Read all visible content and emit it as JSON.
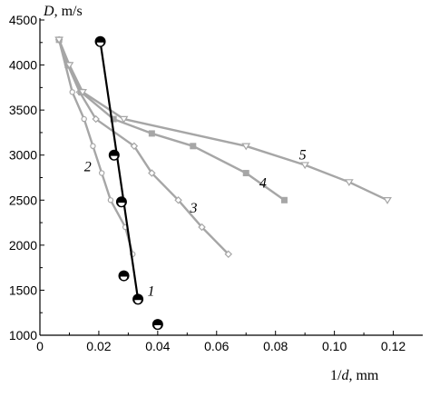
{
  "chart_data": {
    "type": "line",
    "title": "",
    "xlabel_var": "1/",
    "xlabel_var_italic": "d",
    "xlabel_unit": ", mm",
    "ylabel_var": "D",
    "ylabel_unit": ", m/s",
    "xlim": [
      0,
      0.13
    ],
    "ylim": [
      1000,
      4500
    ],
    "xticks": [
      0,
      0.02,
      0.04,
      0.06,
      0.08,
      0.1,
      0.12
    ],
    "xtick_labels": [
      "0",
      "0.02",
      "0.04",
      "0.06",
      "0.08",
      "0.10",
      "0.12"
    ],
    "yticks": [
      1000,
      1500,
      2000,
      2500,
      3000,
      3500,
      4000,
      4500
    ],
    "ytick_labels": [
      "1000",
      "1500",
      "2000",
      "2500",
      "3000",
      "3500",
      "4000",
      "4500"
    ],
    "colors": {
      "gray": "#a6a6a6",
      "black": "#000000"
    },
    "series": [
      {
        "label": "1",
        "marker": "half-filled-circle",
        "points": [
          {
            "x": 0.0205,
            "y": 4260
          },
          {
            "x": 0.0252,
            "y": 3000
          },
          {
            "x": 0.0277,
            "y": 2480
          },
          {
            "x": 0.0285,
            "y": 1660
          },
          {
            "x": 0.0333,
            "y": 1400
          },
          {
            "x": 0.04,
            "y": 1120
          }
        ],
        "fit_line": [
          {
            "x": 0.0205,
            "y": 4260
          },
          {
            "x": 0.0333,
            "y": 1400
          }
        ]
      },
      {
        "label": "2",
        "marker": "open-circle",
        "points": [
          {
            "x": 0.0065,
            "y": 4280
          },
          {
            "x": 0.011,
            "y": 3700
          },
          {
            "x": 0.015,
            "y": 3400
          },
          {
            "x": 0.018,
            "y": 3100
          },
          {
            "x": 0.021,
            "y": 2800
          },
          {
            "x": 0.024,
            "y": 2500
          },
          {
            "x": 0.029,
            "y": 2200
          },
          {
            "x": 0.0315,
            "y": 1900
          }
        ]
      },
      {
        "label": "3",
        "marker": "open-diamond",
        "points": [
          {
            "x": 0.0065,
            "y": 4280
          },
          {
            "x": 0.0095,
            "y": 4000
          },
          {
            "x": 0.0135,
            "y": 3700
          },
          {
            "x": 0.019,
            "y": 3400
          },
          {
            "x": 0.032,
            "y": 3100
          },
          {
            "x": 0.038,
            "y": 2800
          },
          {
            "x": 0.047,
            "y": 2500
          },
          {
            "x": 0.055,
            "y": 2200
          },
          {
            "x": 0.064,
            "y": 1900
          }
        ]
      },
      {
        "label": "4",
        "marker": "filled-square",
        "points": [
          {
            "x": 0.0065,
            "y": 4280
          },
          {
            "x": 0.0095,
            "y": 4000
          },
          {
            "x": 0.014,
            "y": 3700
          },
          {
            "x": 0.025,
            "y": 3400
          },
          {
            "x": 0.038,
            "y": 3240
          },
          {
            "x": 0.052,
            "y": 3100
          },
          {
            "x": 0.07,
            "y": 2800
          },
          {
            "x": 0.083,
            "y": 2500
          }
        ]
      },
      {
        "label": "5",
        "marker": "open-triangle-down",
        "points": [
          {
            "x": 0.0065,
            "y": 4280
          },
          {
            "x": 0.01,
            "y": 4000
          },
          {
            "x": 0.0145,
            "y": 3700
          },
          {
            "x": 0.0285,
            "y": 3400
          },
          {
            "x": 0.07,
            "y": 3100
          },
          {
            "x": 0.09,
            "y": 2890
          },
          {
            "x": 0.105,
            "y": 2700
          },
          {
            "x": 0.118,
            "y": 2500
          }
        ]
      }
    ]
  }
}
